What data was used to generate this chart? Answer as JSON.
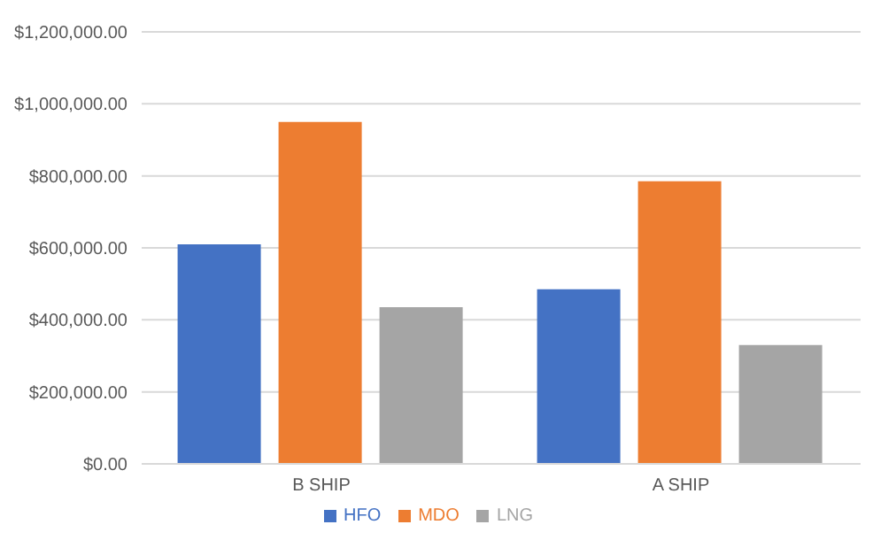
{
  "chart_data": {
    "type": "bar",
    "categories": [
      "B SHIP",
      "A SHIP"
    ],
    "series": [
      {
        "name": "HFO",
        "color": "#4472c4",
        "values": [
          610000,
          485000
        ]
      },
      {
        "name": "MDO",
        "color": "#ed7d31",
        "values": [
          950000,
          785000
        ]
      },
      {
        "name": "LNG",
        "color": "#a5a5a5",
        "values": [
          435000,
          330000
        ]
      }
    ],
    "ylim": [
      0,
      1200000
    ],
    "yticks": [
      {
        "value": 0,
        "label": "$0.00"
      },
      {
        "value": 200000,
        "label": "$200,000.00"
      },
      {
        "value": 400000,
        "label": "$400,000.00"
      },
      {
        "value": 600000,
        "label": "$600,000.00"
      },
      {
        "value": 800000,
        "label": "$800,000.00"
      },
      {
        "value": 1000000,
        "label": "$1,000,000.00"
      },
      {
        "value": 1200000,
        "label": "$1,200,000.00"
      }
    ],
    "grid": "y",
    "legend": "bottom"
  }
}
